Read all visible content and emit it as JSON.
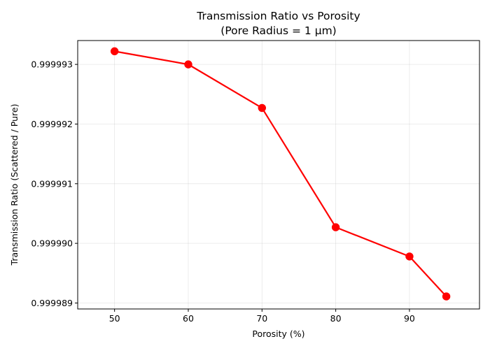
{
  "chart_data": {
    "type": "line",
    "title": "Transmission Ratio vs Porosity",
    "subtitle": "(Pore Radius = 1 μm)",
    "xlabel": "Porosity (%)",
    "ylabel": "Transmission Ratio (Scattered / Pure)",
    "x": [
      50,
      60,
      70,
      80,
      90,
      95
    ],
    "series": [
      {
        "values": [
          0.99999322,
          0.999993,
          0.99999227,
          0.99999027,
          0.99998978,
          0.99998911
        ],
        "color": "#ff0000",
        "marker": "circle"
      }
    ],
    "xlim": [
      45,
      99.5
    ],
    "ylim": [
      0.9999889,
      0.9999934
    ],
    "x_ticks": [
      50,
      60,
      70,
      80,
      90
    ],
    "x_tick_labels": [
      "50",
      "60",
      "70",
      "80",
      "90"
    ],
    "y_ticks": [
      0.999989,
      0.99999,
      0.999991,
      0.999992,
      0.999993
    ],
    "y_tick_labels": [
      "0.999989",
      "0.999990",
      "0.999991",
      "0.999992",
      "0.999993"
    ],
    "grid": true
  }
}
